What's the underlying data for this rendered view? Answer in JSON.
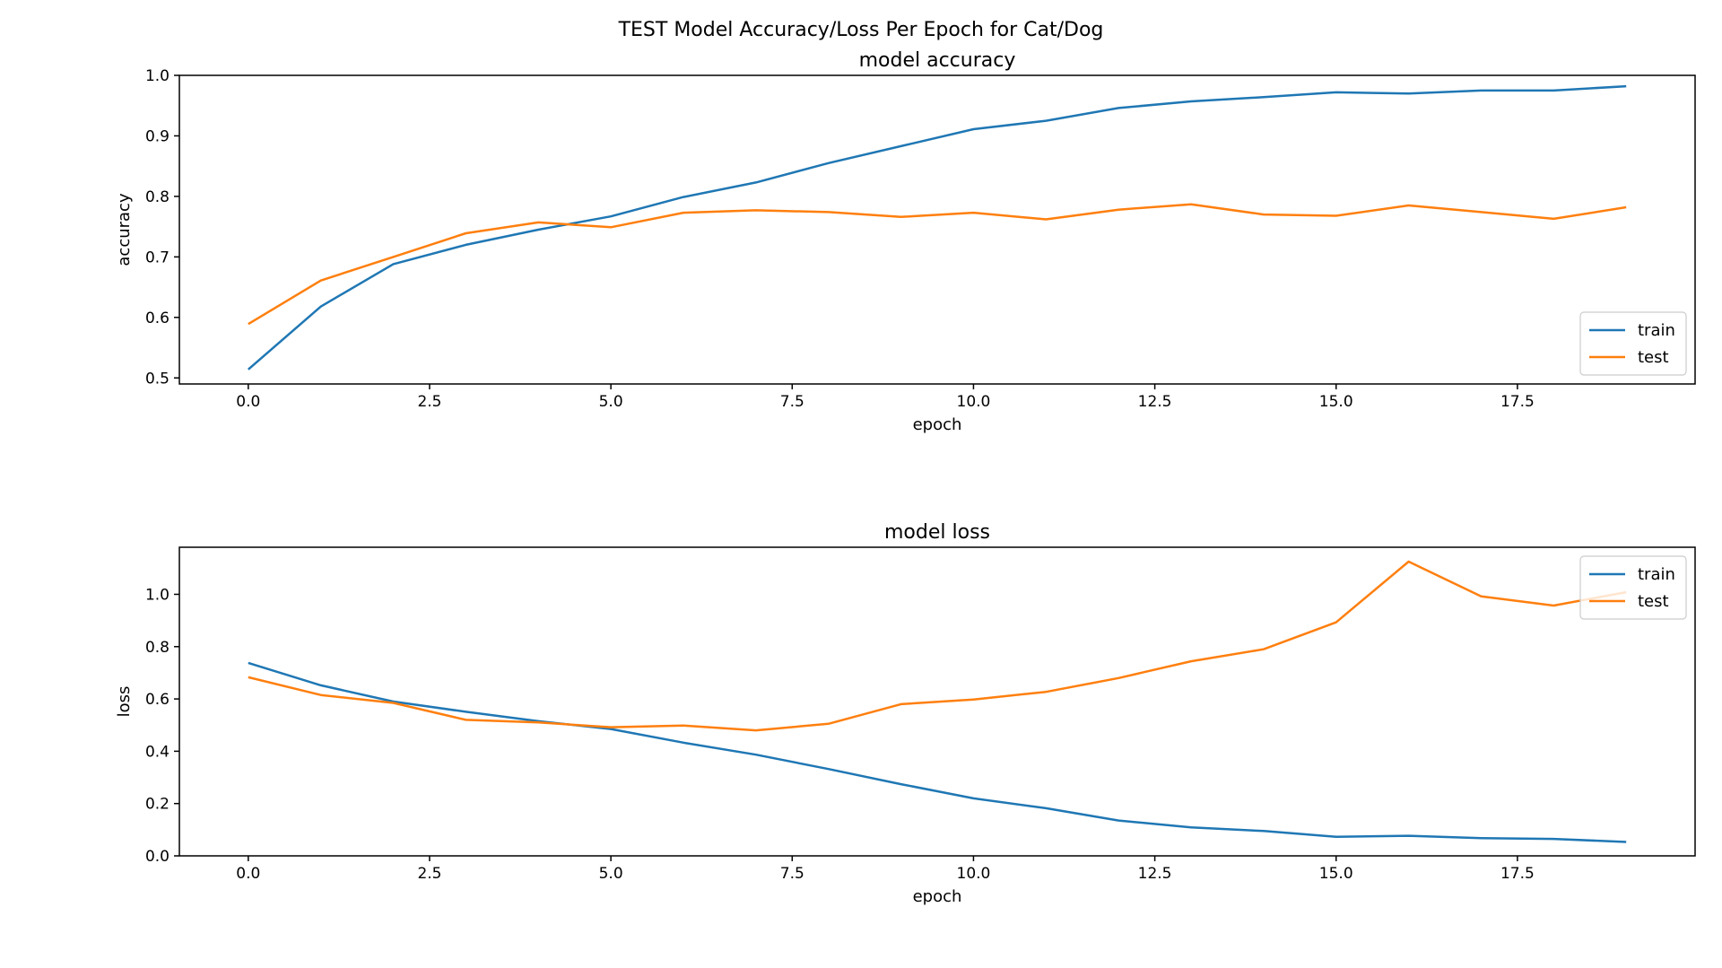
{
  "figure_title": "TEST Model Accuracy/Loss Per Epoch for Cat/Dog",
  "colors": {
    "train": "#1f77b4",
    "test": "#ff7f0e"
  },
  "chart_data": [
    {
      "type": "line",
      "title": "model accuracy",
      "xlabel": "epoch",
      "ylabel": "accuracy",
      "xlim": [
        -0.95,
        19.95
      ],
      "ylim": [
        0.49,
        1.0
      ],
      "x_ticks": [
        0.0,
        2.5,
        5.0,
        7.5,
        10.0,
        12.5,
        15.0,
        17.5
      ],
      "x_tick_labels": [
        "0.0",
        "2.5",
        "5.0",
        "7.5",
        "10.0",
        "12.5",
        "15.0",
        "17.5"
      ],
      "y_ticks": [
        0.5,
        0.6,
        0.7,
        0.8,
        0.9,
        1.0
      ],
      "y_tick_labels": [
        "0.5",
        "0.6",
        "0.7",
        "0.8",
        "0.9",
        "1.0"
      ],
      "legend_position": "lower right",
      "x": [
        0,
        1,
        2,
        3,
        4,
        5,
        6,
        7,
        8,
        9,
        10,
        11,
        12,
        13,
        14,
        15,
        16,
        17,
        18,
        19
      ],
      "series": [
        {
          "name": "train",
          "values": [
            0.514,
            0.618,
            0.688,
            0.72,
            0.745,
            0.767,
            0.799,
            0.823,
            0.855,
            0.883,
            0.911,
            0.925,
            0.946,
            0.957,
            0.964,
            0.972,
            0.97,
            0.975,
            0.975,
            0.982
          ]
        },
        {
          "name": "test",
          "values": [
            0.589,
            0.661,
            0.7,
            0.739,
            0.757,
            0.749,
            0.773,
            0.777,
            0.774,
            0.766,
            0.773,
            0.762,
            0.778,
            0.787,
            0.77,
            0.768,
            0.785,
            0.774,
            0.763,
            0.782
          ]
        }
      ]
    },
    {
      "type": "line",
      "title": "model loss",
      "xlabel": "epoch",
      "ylabel": "loss",
      "xlim": [
        -0.95,
        19.95
      ],
      "ylim": [
        0.0,
        1.18
      ],
      "x_ticks": [
        0.0,
        2.5,
        5.0,
        7.5,
        10.0,
        12.5,
        15.0,
        17.5
      ],
      "x_tick_labels": [
        "0.0",
        "2.5",
        "5.0",
        "7.5",
        "10.0",
        "12.5",
        "15.0",
        "17.5"
      ],
      "y_ticks": [
        0.0,
        0.2,
        0.4,
        0.6,
        0.8,
        1.0
      ],
      "y_tick_labels": [
        "0.0",
        "0.2",
        "0.4",
        "0.6",
        "0.8",
        "1.0"
      ],
      "legend_position": "upper right",
      "x": [
        0,
        1,
        2,
        3,
        4,
        5,
        6,
        7,
        8,
        9,
        10,
        11,
        12,
        13,
        14,
        15,
        16,
        17,
        18,
        19
      ],
      "series": [
        {
          "name": "train",
          "values": [
            0.738,
            0.652,
            0.59,
            0.551,
            0.515,
            0.485,
            0.433,
            0.387,
            0.332,
            0.274,
            0.22,
            0.182,
            0.135,
            0.109,
            0.095,
            0.073,
            0.077,
            0.068,
            0.065,
            0.053
          ]
        },
        {
          "name": "test",
          "values": [
            0.683,
            0.615,
            0.585,
            0.52,
            0.51,
            0.492,
            0.498,
            0.48,
            0.505,
            0.58,
            0.598,
            0.627,
            0.68,
            0.744,
            0.79,
            0.893,
            1.125,
            0.992,
            0.957,
            1.008
          ]
        }
      ]
    }
  ]
}
